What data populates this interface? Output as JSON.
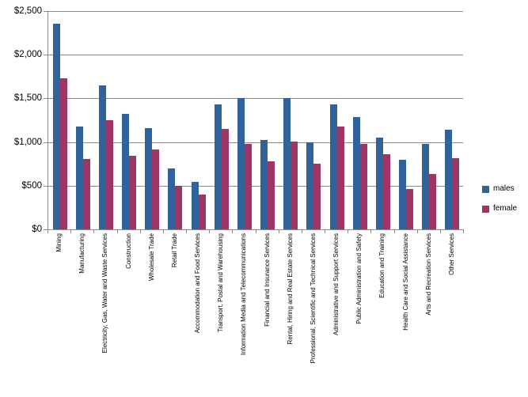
{
  "chart_data": {
    "type": "bar",
    "title": "",
    "categories": [
      "Mining",
      "Manufacturing",
      "Electricity, Gas, Water and Waste Services",
      "Construction",
      "Wholesale Trade",
      "Retail Trade",
      "Accommodation and Food Services",
      "Transport, Postal and Warehousing",
      "Information Media and Telecommunications",
      "Financial and Insurance Services",
      "Rental, Hiring and Real Estate Services",
      "Professional, Scientific and Technical Services",
      "Administrative and Support Services",
      "Public Administration and Safety",
      "Education and Training",
      "Health Care and Social Assistance",
      "Arts and Recreation Services",
      "Other Services"
    ],
    "series": [
      {
        "name": "males",
        "color": "#31639B",
        "values": [
          2360,
          1175,
          1650,
          1325,
          1160,
          700,
          545,
          1435,
          1500,
          1020,
          1500,
          1000,
          1430,
          1285,
          1055,
          800,
          975,
          1145
        ]
      },
      {
        "name": "female",
        "color": "#9E3566",
        "values": [
          1730,
          805,
          1250,
          845,
          915,
          500,
          395,
          1150,
          980,
          780,
          1010,
          755,
          1175,
          975,
          860,
          465,
          630,
          815
        ]
      }
    ],
    "y_axis": {
      "min": 0,
      "max": 2500,
      "step": 500,
      "tick_labels": [
        "$0",
        "$500",
        "$1,000",
        "$1,500",
        "$2,000",
        "$2,500"
      ],
      "format": "currency"
    },
    "x_axis": {
      "label_rotation_degrees": 90
    },
    "legend": {
      "position": "right",
      "entries": [
        "males",
        "female"
      ]
    },
    "grid": true,
    "gridline_color": "#8a8a8a",
    "background_color": "#ffffff"
  }
}
